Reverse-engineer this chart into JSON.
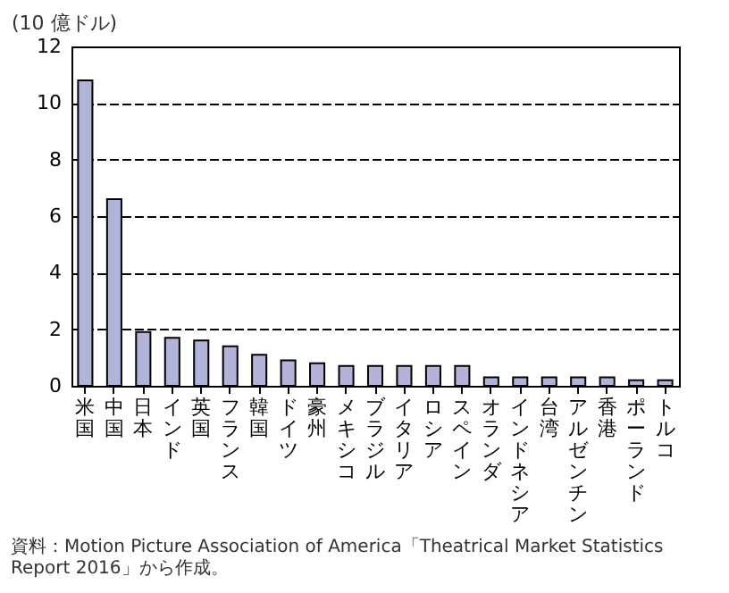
{
  "chart_data": {
    "type": "bar",
    "ylabel": "(10 億ドル)",
    "categories": [
      "米国",
      "中国",
      "日本",
      "インド",
      "英国",
      "フランス",
      "韓国",
      "ドイツ",
      "豪州",
      "メキシコ",
      "ブラジル",
      "イタリア",
      "ロシア",
      "スペイン",
      "オランダ",
      "インドネシア",
      "台湾",
      "アルゼンチン",
      "香港",
      "ポーランド",
      "トルコ"
    ],
    "values": [
      10.8,
      6.6,
      1.9,
      1.7,
      1.6,
      1.4,
      1.1,
      0.9,
      0.8,
      0.7,
      0.7,
      0.7,
      0.7,
      0.7,
      0.3,
      0.3,
      0.3,
      0.3,
      0.3,
      0.2,
      0.2
    ],
    "color": "#b3b3d9",
    "ylim": [
      0,
      12
    ],
    "yticks": [
      0,
      2,
      4,
      6,
      8,
      10,
      12
    ],
    "grid": "y",
    "annotations": [
      "資料：Motion Picture Association of America「Theatrical Market Statistics Report 2016」から作成。"
    ]
  }
}
